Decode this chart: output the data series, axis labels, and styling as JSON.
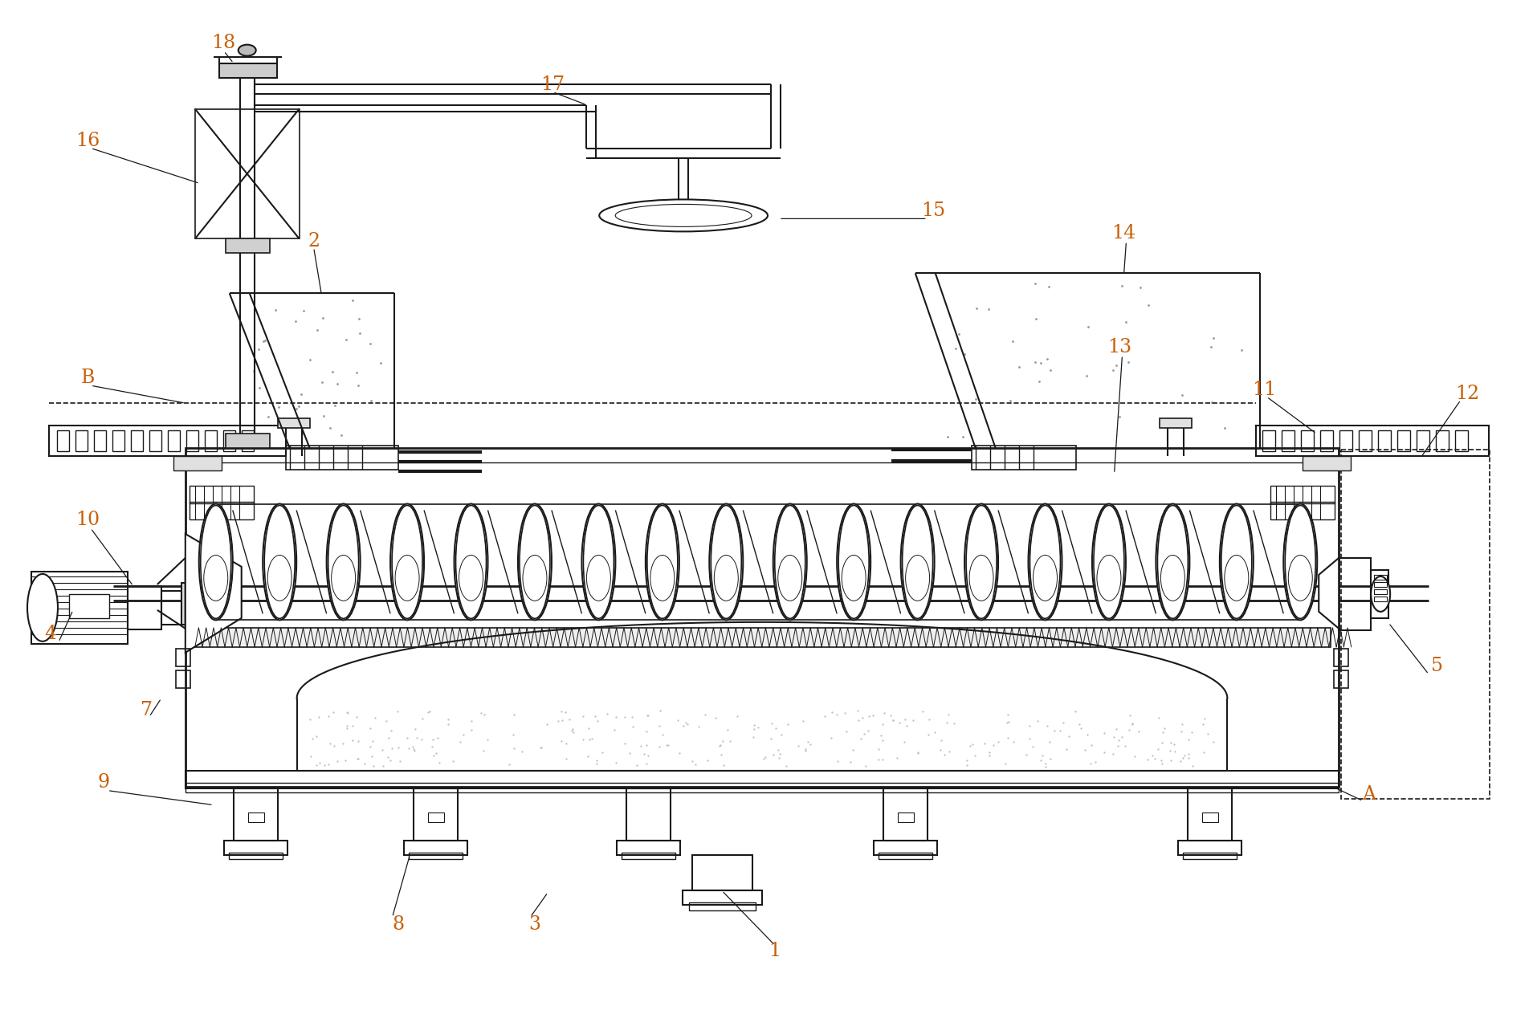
{
  "figsize": [
    19.09,
    12.58
  ],
  "dpi": 100,
  "bg_color": "#ffffff",
  "line_color": "#1a1a1a",
  "label_color": "#c8600a",
  "label_fontsize": 17,
  "line_width": 1.5
}
